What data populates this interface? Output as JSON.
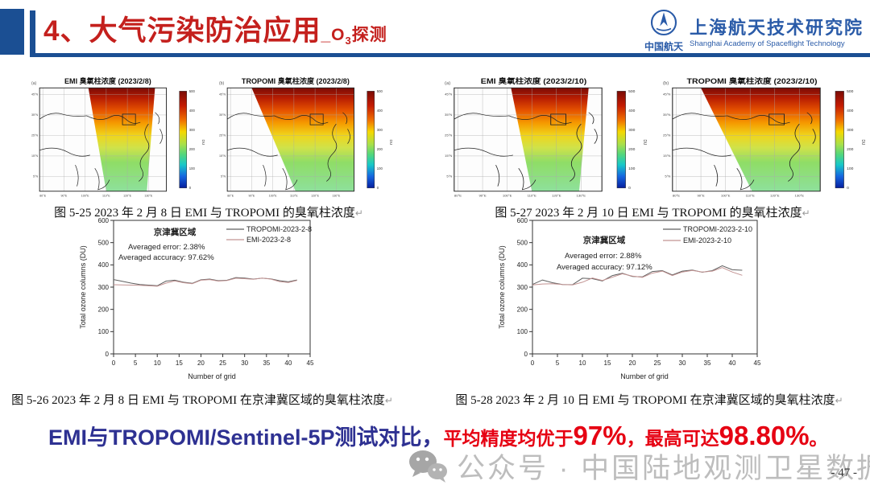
{
  "header": {
    "title_main": "4、大气污染防治应用",
    "title_sub_prefix": "_O",
    "title_sub_3": "3",
    "title_sub_suffix": "探测",
    "logo_cn": "中国航天",
    "org_cn": "上海航天技术研究院",
    "org_en": "Shanghai Academy of Spaceflight Technology"
  },
  "maps_common": {
    "colorbar_ticks": [
      "500",
      "400",
      "300",
      "200",
      "100",
      "0"
    ],
    "colorbar_unit": "DU",
    "lon_ticks": [
      "80°E",
      "90°E",
      "100°E",
      "110°E",
      "120°E",
      "130°E"
    ],
    "lat_ticks": [
      "45°N",
      "35°N",
      "25°N",
      "15°N",
      "5°N"
    ]
  },
  "maps": [
    {
      "corner": "(a)",
      "title": "EMI 臭氧柱浓度 (2023/2/8)",
      "swath": "narrow"
    },
    {
      "corner": "(b)",
      "title": "TROPOMI 臭氧柱浓度 (2023/2/8)",
      "swath": "wide"
    },
    {
      "corner": "(a)",
      "title": "EMI 臭氧柱浓度 (2023/2/10)",
      "swath": "narrow"
    },
    {
      "corner": "(b)",
      "title": "TROPOMI 臭氧柱浓度 (2023/2/10)",
      "swath": "wide"
    }
  ],
  "captions": {
    "fig25": "图 5-25 2023 年 2 月 8 日 EMI 与 TROPOMI 的臭氧柱浓度",
    "fig26": "图 5-26 2023 年 2 月 8 日 EMI 与 TROPOMI 在京津冀区域的臭氧柱浓度",
    "fig27": "图 5-27 2023 年 2 月 10 日 EMI 与 TROPOMI 的臭氧柱浓度",
    "fig28": "图 5-28 2023 年 2 月 10 日 EMI 与 TROPOMI 在京津冀区域的臭氧柱浓度",
    "return_mark": "↵"
  },
  "chart_data": [
    {
      "type": "line",
      "region": "京津冀区域",
      "error_text": "Averaged error: 2.38%",
      "accuracy_text": "Averaged accuracy: 97.62%",
      "xlabel": "Number of grid",
      "ylabel": "Total ozone columns (DU)",
      "xlim": [
        0,
        45
      ],
      "ylim": [
        0,
        600
      ],
      "xtick": 5,
      "ytick": 100,
      "legend_position": "top-right",
      "x": [
        0,
        2,
        4,
        6,
        8,
        10,
        12,
        14,
        16,
        18,
        20,
        22,
        24,
        26,
        28,
        30,
        32,
        34,
        36,
        38,
        40,
        42
      ],
      "series": [
        {
          "name": "TROPOMI-2023-2-8",
          "color": "#5f5f5f",
          "y": [
            334,
            326,
            318,
            312,
            309,
            306,
            327,
            331,
            322,
            317,
            333,
            336,
            329,
            331,
            343,
            341,
            336,
            340,
            337,
            329,
            324,
            332
          ]
        },
        {
          "name": "EMI-2023-2-8",
          "color": "#c29392",
          "y": [
            311,
            310,
            309,
            308,
            306,
            304,
            318,
            328,
            320,
            315,
            331,
            334,
            327,
            330,
            340,
            338,
            335,
            341,
            336,
            325,
            321,
            330
          ]
        }
      ]
    },
    {
      "type": "line",
      "region": "京津冀区域",
      "error_text": "Averaged error: 2.88%",
      "accuracy_text": "Averaged accuracy: 97.12%",
      "xlabel": "Number of grid",
      "ylabel": "Total ozone columns (DU)",
      "xlim": [
        0,
        45
      ],
      "ylim": [
        0,
        600
      ],
      "xtick": 5,
      "ytick": 100,
      "legend_position": "top-right",
      "x": [
        0,
        2,
        4,
        6,
        8,
        10,
        12,
        14,
        16,
        18,
        20,
        22,
        24,
        26,
        28,
        30,
        32,
        34,
        36,
        38,
        40,
        42
      ],
      "series": [
        {
          "name": "TROPOMI-2023-2-10",
          "color": "#5f5f5f",
          "y": [
            312,
            332,
            320,
            312,
            311,
            340,
            338,
            328,
            352,
            362,
            348,
            346,
            370,
            374,
            355,
            372,
            377,
            367,
            374,
            396,
            378,
            376
          ]
        },
        {
          "name": "EMI-2023-2-10",
          "color": "#c29392",
          "y": [
            310,
            314,
            315,
            312,
            310,
            322,
            341,
            330,
            345,
            360,
            350,
            344,
            363,
            372,
            352,
            368,
            375,
            368,
            372,
            388,
            368,
            353
          ]
        }
      ]
    }
  ],
  "summary": {
    "blue_text": "EMI与TROPOMI/Sentinel-5P测试对比，",
    "red_lead": "平均精度均优于",
    "big_1": "97%",
    "red_mid": "，最高可达",
    "big_2": "98.80%",
    "red_end": "。"
  },
  "watermark": {
    "text": "公众号 · 中国陆地观测卫星数据中心"
  },
  "page_number": "- 47 -"
}
